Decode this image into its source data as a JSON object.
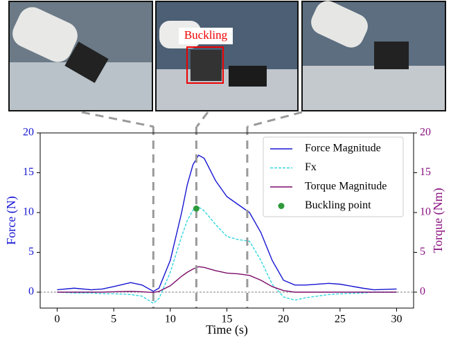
{
  "chart_data": {
    "type": "line",
    "annotation": "Buckling",
    "x_label": "Time (s)",
    "y_label": "Force (N)",
    "y2_label": "Torque (Nm)",
    "x": [
      0,
      1.5,
      3,
      4,
      5,
      6.5,
      7.5,
      8.5,
      9,
      10,
      11,
      11.5,
      12,
      12.5,
      13,
      14,
      15,
      16,
      17,
      18,
      19,
      20,
      21,
      22,
      24,
      25,
      27,
      28,
      30
    ],
    "series": [
      {
        "name": "Force Magnitude",
        "color": "#1414d2",
        "dash": false,
        "values": [
          0.3,
          0.5,
          0.3,
          0.4,
          0.7,
          1.2,
          0.9,
          0.1,
          0.5,
          4,
          10,
          13.5,
          16,
          17.2,
          16.8,
          14,
          12,
          11,
          10,
          7.5,
          4,
          1.5,
          0.9,
          0.9,
          1.1,
          1,
          0.5,
          0.3,
          0.4
        ]
      },
      {
        "name": "Fx",
        "color": "#33d6e0",
        "dash": true,
        "values": [
          0,
          -0.1,
          -0.1,
          -0.2,
          -0.2,
          -0.3,
          -0.5,
          -1.4,
          -0.8,
          2.5,
          7,
          9,
          10.3,
          10.7,
          10.2,
          8.5,
          7,
          6.6,
          6.4,
          4,
          1,
          -0.6,
          -1,
          -0.7,
          -0.3,
          -0.2,
          -0.1,
          0,
          0
        ]
      },
      {
        "name": "Torque Magnitude",
        "color": "#7a0a6a",
        "dash": false,
        "axis": "y2",
        "values": [
          0,
          0,
          0,
          0,
          0.05,
          0.1,
          0.05,
          -0.05,
          0.1,
          0.8,
          2,
          2.5,
          2.9,
          3.2,
          3.1,
          2.7,
          2.4,
          2.3,
          2.1,
          1.5,
          0.7,
          0.2,
          0,
          0,
          0,
          0,
          0,
          0,
          0
        ]
      }
    ],
    "points": {
      "name": "Buckling point",
      "color": "#2e9a3a",
      "x": [
        12.3
      ],
      "values": [
        10.5
      ]
    },
    "vlines": [
      8.5,
      12.3,
      16.8
    ],
    "xlim": [
      -1.5,
      31.5
    ],
    "xticks": [
      0,
      5,
      10,
      15,
      20,
      25,
      30
    ],
    "ylim": [
      -2,
      20
    ],
    "yticks": [
      0,
      5,
      10,
      15,
      20
    ],
    "y2lim": [
      -2,
      20
    ],
    "y2ticks": [
      0,
      5,
      10,
      15,
      20
    ],
    "legend": "upper right",
    "y_color": "#1414d2",
    "y2_color": "#8a1080"
  }
}
